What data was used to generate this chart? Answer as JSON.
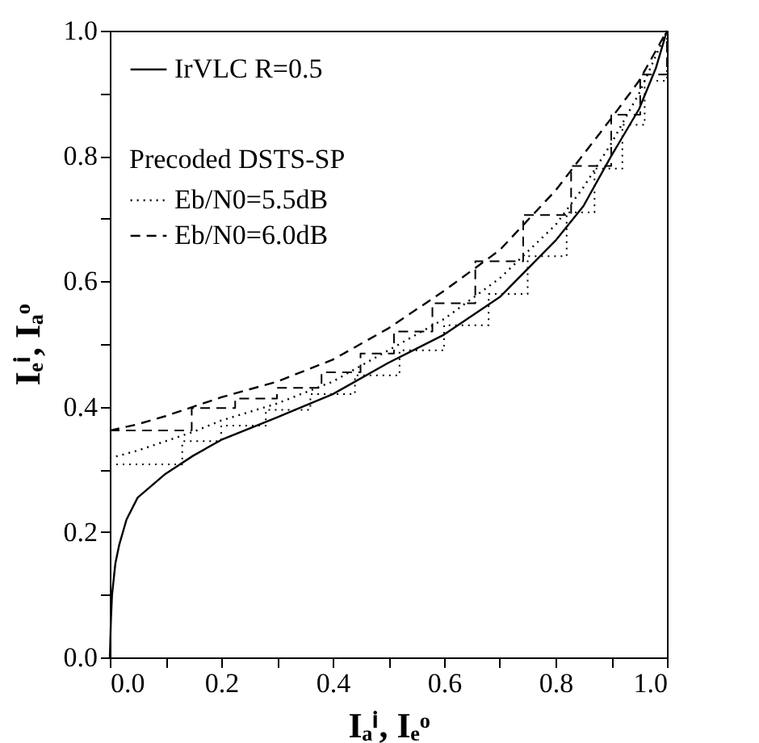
{
  "chart_data": {
    "type": "line",
    "xlabel": "Iₐⁱ, Iₑᵒ",
    "ylabel": "Iₑⁱ, Iₐᵒ",
    "legend": "top left",
    "grid": false,
    "annotations": [
      "Precoded DSTS-SP"
    ],
    "xlim": [
      0,
      1
    ],
    "ylim": [
      0,
      1
    ],
    "xticks": [
      {
        "value": 0,
        "label": "0.0"
      },
      {
        "value": 0.1,
        "label": null
      },
      0.2,
      {
        "value": 0.3,
        "label": null
      },
      0.4,
      {
        "value": 0.5,
        "label": null
      },
      0.6,
      {
        "value": 0.7,
        "label": null
      },
      0.8,
      {
        "value": 0.9,
        "label": null
      },
      {
        "value": 1,
        "label": "1.0"
      }
    ],
    "yticks": [
      {
        "value": 0,
        "label": "0.0"
      },
      {
        "value": 0.1,
        "label": null
      },
      0.2,
      {
        "value": 0.3,
        "label": null
      },
      0.4,
      {
        "value": 0.5,
        "label": null
      },
      0.6,
      {
        "value": 0.7,
        "label": null
      },
      0.8,
      {
        "value": 0.9,
        "label": null
      },
      {
        "value": 1,
        "label": "1.0"
      }
    ],
    "series": [
      {
        "name": "IrVLC R=0.5",
        "line_style": "solid",
        "color": "#000000",
        "x": [
          0,
          0.002,
          0.004,
          0.01,
          0.017,
          0.03,
          0.05,
          0.1,
          0.15,
          0.2,
          0.3,
          0.4,
          0.5,
          0.6,
          0.7,
          0.8,
          0.85,
          0.9,
          0.95,
          0.98,
          1.0
        ],
        "values": [
          0,
          0.06,
          0.1,
          0.15,
          0.18,
          0.22,
          0.255,
          0.293,
          0.322,
          0.347,
          0.383,
          0.42,
          0.47,
          0.515,
          0.575,
          0.665,
          0.72,
          0.8,
          0.875,
          0.94,
          1.0
        ]
      },
      {
        "name": "Eb/N0=5.5dB",
        "line_style": "dotted",
        "color": "#000000",
        "x": [
          0,
          0.05,
          0.1,
          0.15,
          0.2,
          0.3,
          0.4,
          0.5,
          0.6,
          0.7,
          0.8,
          0.85,
          0.9,
          0.95,
          1.0
        ],
        "values": [
          0.318,
          0.33,
          0.345,
          0.36,
          0.378,
          0.405,
          0.44,
          0.49,
          0.54,
          0.605,
          0.69,
          0.75,
          0.82,
          0.9,
          1.0
        ]
      },
      {
        "name": "Eb/N0=6.0dB",
        "line_style": "dashed",
        "color": "#000000",
        "x": [
          0,
          0.05,
          0.1,
          0.15,
          0.2,
          0.3,
          0.4,
          0.5,
          0.6,
          0.7,
          0.8,
          0.9,
          0.95,
          1.0
        ],
        "values": [
          0.362,
          0.372,
          0.385,
          0.4,
          0.415,
          0.44,
          0.475,
          0.525,
          0.585,
          0.65,
          0.745,
          0.86,
          0.92,
          1.0
        ]
      },
      {
        "type": "step",
        "line_style": "dotted",
        "color": "#000000",
        "x": [
          0,
          0.13,
          0.2,
          0.28,
          0.36,
          0.44,
          0.52,
          0.6,
          0.68,
          0.75,
          0.82,
          0.87,
          0.92,
          0.96,
          1.0
        ],
        "values": [
          0.308,
          0.345,
          0.37,
          0.395,
          0.42,
          0.45,
          0.49,
          0.53,
          0.58,
          0.64,
          0.71,
          0.78,
          0.85,
          0.92,
          1.0
        ]
      },
      {
        "type": "step",
        "line_style": "dashed",
        "color": "#000000",
        "x": [
          0,
          0.147,
          0.225,
          0.3,
          0.38,
          0.45,
          0.51,
          0.579,
          0.656,
          0.742,
          0.828,
          0.9,
          0.952,
          1.0
        ],
        "values": [
          0.362,
          0.398,
          0.413,
          0.43,
          0.455,
          0.485,
          0.52,
          0.565,
          0.632,
          0.706,
          0.784,
          0.866,
          0.93,
          1.0
        ]
      }
    ]
  }
}
